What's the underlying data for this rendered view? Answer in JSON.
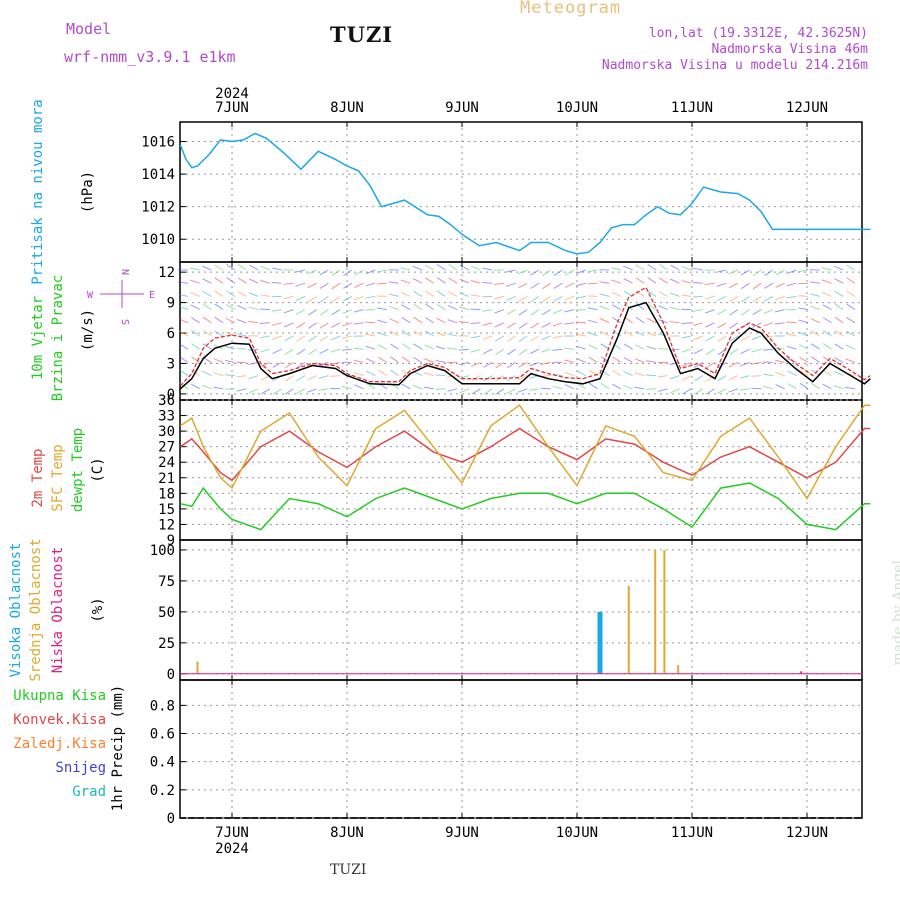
{
  "header": {
    "model_label": "Model",
    "model_name": "wrf-nmm_v3.9.1 e1km",
    "station": "TUZI",
    "product": "Meteogram",
    "coords": "lon,lat (19.3312E, 42.3625N)",
    "elevation": "Nadmorska Visina 46m",
    "model_elevation": "Nadmorska Visina u modelu 214.216m",
    "footer_station": "TUZI",
    "watermark": "made by Angel"
  },
  "time_axis": {
    "year": "2024",
    "days": [
      "7JUN",
      "8JUN",
      "9JUN",
      "10JUN",
      "11JUN",
      "12JUN"
    ]
  },
  "colors": {
    "pressure": "#1aa8e8",
    "wind_speed": "#000000",
    "wind_gust": "#e03030",
    "temp2m": "#e04848",
    "sfc_temp": "#e0a830",
    "dewpt": "#22cc22",
    "high_cloud": "#1aa8e8",
    "mid_cloud": "#e0a830",
    "low_cloud": "#e02080",
    "grid": "#999999"
  },
  "chart_data": [
    {
      "type": "line",
      "panel": "pressure",
      "ylabel_lines": [
        "Pritisak na nivou mora",
        "(hPa)"
      ],
      "yticks": [
        "1010",
        "1012",
        "1014",
        "1016"
      ],
      "ylim": [
        1008.6,
        1017.2
      ],
      "x_days": [
        -0.45,
        -0.4,
        -0.35,
        -0.3,
        -0.2,
        -0.1,
        0.0,
        0.1,
        0.2,
        0.3,
        0.45,
        0.6,
        0.75,
        0.9,
        1.0,
        1.1,
        1.2,
        1.3,
        1.5,
        1.7,
        1.8,
        1.9,
        2.0,
        2.15,
        2.3,
        2.5,
        2.6,
        2.75,
        2.9,
        3.0,
        3.1,
        3.2,
        3.3,
        3.4,
        3.5,
        3.6,
        3.7,
        3.8,
        3.9,
        4.0,
        4.1,
        4.25,
        4.4,
        4.5,
        4.6,
        4.7,
        4.8,
        4.9,
        5.0,
        5.1,
        5.2,
        5.35,
        5.5,
        5.55
      ],
      "series": [
        {
          "values": [
            1015.8,
            1014.9,
            1014.4,
            1014.5,
            1015.2,
            1016.1,
            1016.0,
            1016.1,
            1016.5,
            1016.2,
            1015.3,
            1014.3,
            1015.4,
            1014.9,
            1014.5,
            1014.2,
            1013.3,
            1012.0,
            1012.4,
            1011.5,
            1011.4,
            1010.9,
            1010.3,
            1009.6,
            1009.8,
            1009.3,
            1009.8,
            1009.8,
            1009.3,
            1009.1,
            1009.2,
            1009.8,
            1010.7,
            1010.9,
            1010.9,
            1011.5,
            1012.0,
            1011.6,
            1011.5,
            1012.2,
            1013.2,
            1012.9,
            1012.8,
            1012.4,
            1011.7,
            1010.6,
            1010.6,
            1010.6,
            1010.6,
            1010.6,
            1010.6,
            1010.6,
            1010.6,
            1010.6
          ]
        }
      ]
    },
    {
      "type": "line",
      "panel": "wind",
      "ylabel_lines": [
        "10m Vjetar",
        "Brzina i Pravac",
        "(m/s)"
      ],
      "compass": [
        "N",
        "E",
        "S",
        "W"
      ],
      "yticks": [
        "0",
        "3",
        "6",
        "9",
        "12"
      ],
      "ylim": [
        -0.6,
        13
      ],
      "x_days": [
        -0.45,
        -0.35,
        -0.25,
        -0.15,
        0.0,
        0.15,
        0.25,
        0.35,
        0.5,
        0.7,
        0.9,
        1.0,
        1.2,
        1.45,
        1.55,
        1.7,
        1.85,
        2.0,
        2.2,
        2.5,
        2.6,
        2.75,
        2.9,
        3.05,
        3.2,
        3.35,
        3.45,
        3.6,
        3.75,
        3.9,
        4.05,
        4.2,
        4.35,
        4.5,
        4.6,
        4.75,
        4.9,
        5.05,
        5.2,
        5.35,
        5.5,
        5.55
      ],
      "series": [
        {
          "name": "speed",
          "values": [
            0.5,
            1.5,
            3.5,
            4.5,
            5.0,
            4.9,
            2.5,
            1.5,
            2.0,
            2.8,
            2.5,
            1.8,
            1.0,
            0.9,
            2.0,
            2.8,
            2.3,
            1.0,
            1.0,
            1.0,
            2.0,
            1.5,
            1.2,
            1.0,
            1.5,
            5.5,
            8.5,
            9.0,
            6.0,
            2.0,
            2.5,
            1.5,
            5.0,
            6.5,
            6.0,
            4.0,
            2.5,
            1.2,
            3.0,
            2.0,
            1.0,
            1.5
          ]
        },
        {
          "name": "gust",
          "values": [
            0.8,
            2.0,
            4.5,
            5.5,
            5.8,
            5.5,
            3.0,
            2.0,
            2.3,
            3.0,
            2.8,
            2.0,
            1.2,
            1.2,
            2.3,
            3.0,
            2.6,
            1.5,
            1.5,
            1.6,
            2.5,
            2.0,
            1.6,
            1.5,
            2.0,
            7.0,
            9.5,
            10.5,
            7.0,
            2.5,
            3.0,
            2.0,
            6.0,
            7.0,
            6.5,
            4.5,
            3.0,
            1.8,
            3.5,
            2.5,
            1.4,
            1.8
          ]
        }
      ]
    },
    {
      "type": "line",
      "panel": "temperature",
      "ylabel_lines": [
        "2m Temp",
        "SFC Temp",
        "dewpt Temp",
        "(C)"
      ],
      "yticks": [
        "9",
        "12",
        "15",
        "18",
        "21",
        "24",
        "27",
        "30",
        "33",
        "36"
      ],
      "ylim": [
        9,
        36
      ],
      "x_days": [
        -0.45,
        -0.35,
        -0.25,
        -0.1,
        0.0,
        0.25,
        0.5,
        0.75,
        1.0,
        1.25,
        1.5,
        1.75,
        2.0,
        2.25,
        2.5,
        2.75,
        3.0,
        3.25,
        3.5,
        3.75,
        4.0,
        4.25,
        4.5,
        4.75,
        5.0,
        5.25,
        5.5,
        5.55
      ],
      "series": [
        {
          "name": "2m",
          "values": [
            27.0,
            28.5,
            26.0,
            22.0,
            20.5,
            27.0,
            30.0,
            26.0,
            23.0,
            27.0,
            30.0,
            26.0,
            24.0,
            27.0,
            30.5,
            27.0,
            24.5,
            28.5,
            27.5,
            24.0,
            21.5,
            25.0,
            27.0,
            24.0,
            21.0,
            24.0,
            30.5,
            30.5
          ]
        },
        {
          "name": "sfc",
          "values": [
            31.0,
            32.5,
            27.0,
            21.0,
            19.0,
            30.0,
            33.5,
            25.0,
            19.5,
            30.5,
            34.0,
            27.0,
            20.0,
            31.0,
            35.0,
            27.0,
            19.5,
            31.0,
            29.0,
            22.0,
            20.5,
            29.0,
            32.5,
            25.0,
            17.0,
            27.0,
            35.0,
            35.0
          ]
        },
        {
          "name": "dewpt",
          "values": [
            16.0,
            15.5,
            19.0,
            15.0,
            13.0,
            11.0,
            17.0,
            16.0,
            13.5,
            17.0,
            19.0,
            17.0,
            15.0,
            17.0,
            18.0,
            18.0,
            16.0,
            18.0,
            18.0,
            15.0,
            11.5,
            19.0,
            20.0,
            17.0,
            12.0,
            11.0,
            16.0,
            16.0
          ]
        }
      ]
    },
    {
      "type": "bar",
      "panel": "clouds",
      "ylabel_lines": [
        "Visoka Oblacnost",
        "Srednja Oblacnost",
        "Niska Oblacnost",
        "(%)"
      ],
      "yticks": [
        "0",
        "25",
        "50",
        "75",
        "100"
      ],
      "ylim": [
        -5,
        108
      ],
      "series": [
        {
          "name": "Visoka Oblacnost",
          "x_days": [
            3.2
          ],
          "values": [
            50
          ]
        },
        {
          "name": "Srednja Oblacnost",
          "x_days": [
            -0.3,
            3.45,
            3.68,
            3.76,
            3.88
          ],
          "values": [
            10,
            71,
            100,
            100,
            7
          ]
        },
        {
          "name": "Niska Oblacnost",
          "x_days": [
            4.95
          ],
          "values": [
            2
          ]
        }
      ]
    },
    {
      "type": "bar",
      "panel": "precip",
      "ylabel_lines": [
        "1hr Precip (mm)"
      ],
      "legend": [
        "Ukupna Kisa",
        "Konvek.Kisa",
        "Zaledj.Kisa",
        "Snijeg",
        "Grad"
      ],
      "yticks": [
        "0",
        "0.2",
        "0.4",
        "0.6",
        "0.8"
      ],
      "ylim": [
        0,
        0.98
      ],
      "values": []
    }
  ]
}
